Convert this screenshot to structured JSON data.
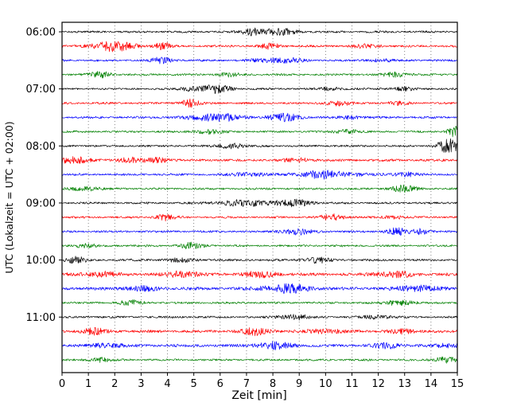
{
  "figure": {
    "background": "#ffffff"
  },
  "chart_data": {
    "type": "line",
    "chart_kind": "helicorder-seismogram",
    "title": "",
    "xlabel": "Zeit [min]",
    "ylabel": "UTC (Lokalzeit = UTC + 02:00)",
    "xlim": [
      0,
      15
    ],
    "minutes_per_row": 15,
    "grid": "vertical-dotted",
    "legend": "none",
    "x_tick_labels": [
      "0",
      "1",
      "2",
      "3",
      "4",
      "5",
      "6",
      "7",
      "8",
      "9",
      "10",
      "11",
      "12",
      "13",
      "14",
      "15"
    ],
    "y_tick_labels": [
      "06:00",
      "07:00",
      "08:00",
      "09:00",
      "10:00",
      "11:00"
    ],
    "trace_colors": {
      "black": "#000000",
      "red": "#ff0000",
      "blue": "#0000ff",
      "green": "#008000"
    },
    "rows": [
      {
        "start": "06:00",
        "color": "black",
        "base": 1.1,
        "bursts": [
          {
            "t": 7.3,
            "amp": 4.5,
            "w": 0.3
          },
          {
            "t": 8.3,
            "amp": 3.0,
            "w": 0.5
          }
        ]
      },
      {
        "start": "06:15",
        "color": "red",
        "base": 1.2,
        "bursts": [
          {
            "t": 1.6,
            "amp": 5.0,
            "w": 0.4
          },
          {
            "t": 2.4,
            "amp": 3.0,
            "w": 0.4
          },
          {
            "t": 3.8,
            "amp": 3.5,
            "w": 0.25
          },
          {
            "t": 7.9,
            "amp": 2.5,
            "w": 0.3
          },
          {
            "t": 11.5,
            "amp": 1.5,
            "w": 0.4
          }
        ]
      },
      {
        "start": "06:30",
        "color": "blue",
        "base": 1.1,
        "bursts": [
          {
            "t": 3.8,
            "amp": 3.0,
            "w": 0.3
          },
          {
            "t": 8.2,
            "amp": 3.0,
            "w": 0.6
          },
          {
            "t": 12.0,
            "amp": 1.5,
            "w": 0.4
          }
        ]
      },
      {
        "start": "06:45",
        "color": "green",
        "base": 1.1,
        "bursts": [
          {
            "t": 1.5,
            "amp": 3.5,
            "w": 0.3
          },
          {
            "t": 6.3,
            "amp": 2.0,
            "w": 0.3
          },
          {
            "t": 12.7,
            "amp": 2.5,
            "w": 0.35
          }
        ]
      },
      {
        "start": "07:00",
        "color": "black",
        "base": 1.1,
        "bursts": [
          {
            "t": 5.0,
            "amp": 3.0,
            "w": 0.3
          },
          {
            "t": 5.9,
            "amp": 4.5,
            "w": 0.35
          },
          {
            "t": 10.2,
            "amp": 2.0,
            "w": 0.3
          },
          {
            "t": 12.9,
            "amp": 1.8,
            "w": 0.3
          }
        ]
      },
      {
        "start": "07:15",
        "color": "red",
        "base": 1.1,
        "bursts": [
          {
            "t": 4.8,
            "amp": 4.5,
            "w": 0.25
          },
          {
            "t": 10.4,
            "amp": 2.5,
            "w": 0.4
          },
          {
            "t": 12.8,
            "amp": 1.5,
            "w": 0.3
          }
        ]
      },
      {
        "start": "07:30",
        "color": "blue",
        "base": 1.2,
        "bursts": [
          {
            "t": 5.8,
            "amp": 5.0,
            "w": 0.6
          },
          {
            "t": 8.4,
            "amp": 3.5,
            "w": 0.5
          },
          {
            "t": 11.0,
            "amp": 1.8,
            "w": 0.3
          }
        ]
      },
      {
        "start": "07:45",
        "color": "green",
        "base": 1.1,
        "bursts": [
          {
            "t": 5.5,
            "amp": 2.0,
            "w": 0.4
          },
          {
            "t": 10.8,
            "amp": 2.5,
            "w": 0.3
          },
          {
            "t": 14.9,
            "amp": 6.0,
            "w": 0.2
          }
        ]
      },
      {
        "start": "08:00",
        "color": "black",
        "base": 1.1,
        "bursts": [
          {
            "t": 6.4,
            "amp": 3.5,
            "w": 0.3
          },
          {
            "t": 14.7,
            "amp": 7.0,
            "w": 0.35
          }
        ]
      },
      {
        "start": "08:15",
        "color": "red",
        "base": 1.3,
        "bursts": [
          {
            "t": 0.3,
            "amp": 5.0,
            "w": 0.4
          },
          {
            "t": 2.5,
            "amp": 3.0,
            "w": 0.3
          },
          {
            "t": 3.6,
            "amp": 3.5,
            "w": 0.3
          },
          {
            "t": 9.0,
            "amp": 2.0,
            "w": 0.4
          }
        ]
      },
      {
        "start": "08:30",
        "color": "blue",
        "base": 1.2,
        "bursts": [
          {
            "t": 7.0,
            "amp": 2.5,
            "w": 0.4
          },
          {
            "t": 10.0,
            "amp": 4.0,
            "w": 0.8
          },
          {
            "t": 13.0,
            "amp": 2.0,
            "w": 0.4
          }
        ]
      },
      {
        "start": "08:45",
        "color": "green",
        "base": 1.1,
        "bursts": [
          {
            "t": 0.9,
            "amp": 2.5,
            "w": 0.35
          },
          {
            "t": 13.0,
            "amp": 3.5,
            "w": 0.35
          }
        ]
      },
      {
        "start": "09:00",
        "color": "black",
        "base": 1.1,
        "bursts": [
          {
            "t": 7.2,
            "amp": 3.5,
            "w": 0.9
          },
          {
            "t": 9.0,
            "amp": 3.0,
            "w": 0.4
          }
        ]
      },
      {
        "start": "09:15",
        "color": "red",
        "base": 1.1,
        "bursts": [
          {
            "t": 3.9,
            "amp": 3.5,
            "w": 0.3
          },
          {
            "t": 10.3,
            "amp": 3.0,
            "w": 0.35
          },
          {
            "t": 12.6,
            "amp": 2.0,
            "w": 0.3
          }
        ]
      },
      {
        "start": "09:30",
        "color": "blue",
        "base": 1.1,
        "bursts": [
          {
            "t": 8.9,
            "amp": 3.0,
            "w": 0.4
          },
          {
            "t": 12.7,
            "amp": 3.5,
            "w": 0.3
          },
          {
            "t": 13.6,
            "amp": 3.5,
            "w": 0.25
          }
        ]
      },
      {
        "start": "09:45",
        "color": "green",
        "base": 1.1,
        "bursts": [
          {
            "t": 0.8,
            "amp": 2.0,
            "w": 0.3
          },
          {
            "t": 4.9,
            "amp": 3.0,
            "w": 0.3
          }
        ]
      },
      {
        "start": "10:00",
        "color": "black",
        "base": 1.2,
        "bursts": [
          {
            "t": 0.5,
            "amp": 3.5,
            "w": 0.25
          },
          {
            "t": 4.5,
            "amp": 1.5,
            "w": 0.5
          },
          {
            "t": 9.6,
            "amp": 3.0,
            "w": 0.35
          }
        ]
      },
      {
        "start": "10:15",
        "color": "red",
        "base": 1.6,
        "bursts": [
          {
            "t": 1.5,
            "amp": 2.5,
            "w": 0.5
          },
          {
            "t": 4.6,
            "amp": 3.5,
            "w": 0.4
          },
          {
            "t": 7.5,
            "amp": 2.5,
            "w": 0.5
          },
          {
            "t": 12.6,
            "amp": 3.0,
            "w": 0.5
          }
        ]
      },
      {
        "start": "10:30",
        "color": "blue",
        "base": 1.6,
        "bursts": [
          {
            "t": 3.0,
            "amp": 2.0,
            "w": 0.5
          },
          {
            "t": 8.5,
            "amp": 4.0,
            "w": 0.7
          },
          {
            "t": 13.5,
            "amp": 3.5,
            "w": 0.5
          }
        ]
      },
      {
        "start": "10:45",
        "color": "green",
        "base": 1.1,
        "bursts": [
          {
            "t": 2.6,
            "amp": 2.5,
            "w": 0.35
          },
          {
            "t": 12.8,
            "amp": 3.0,
            "w": 0.35
          }
        ]
      },
      {
        "start": "11:00",
        "color": "black",
        "base": 1.1,
        "bursts": [
          {
            "t": 8.8,
            "amp": 3.0,
            "w": 0.4
          },
          {
            "t": 12.0,
            "amp": 2.0,
            "w": 0.4
          }
        ]
      },
      {
        "start": "11:15",
        "color": "red",
        "base": 1.5,
        "bursts": [
          {
            "t": 1.2,
            "amp": 3.0,
            "w": 0.35
          },
          {
            "t": 7.4,
            "amp": 3.5,
            "w": 0.4
          },
          {
            "t": 9.9,
            "amp": 2.5,
            "w": 0.4
          },
          {
            "t": 13.0,
            "amp": 2.0,
            "w": 0.4
          }
        ]
      },
      {
        "start": "11:30",
        "color": "blue",
        "base": 1.5,
        "bursts": [
          {
            "t": 1.8,
            "amp": 2.5,
            "w": 0.4
          },
          {
            "t": 8.0,
            "amp": 3.5,
            "w": 0.5
          },
          {
            "t": 12.4,
            "amp": 2.5,
            "w": 0.4
          },
          {
            "t": 14.7,
            "amp": 2.5,
            "w": 0.3
          }
        ]
      },
      {
        "start": "11:45",
        "color": "green",
        "base": 1.1,
        "bursts": [
          {
            "t": 1.4,
            "amp": 3.0,
            "w": 0.3
          },
          {
            "t": 14.5,
            "amp": 3.5,
            "w": 0.3
          }
        ]
      }
    ]
  }
}
